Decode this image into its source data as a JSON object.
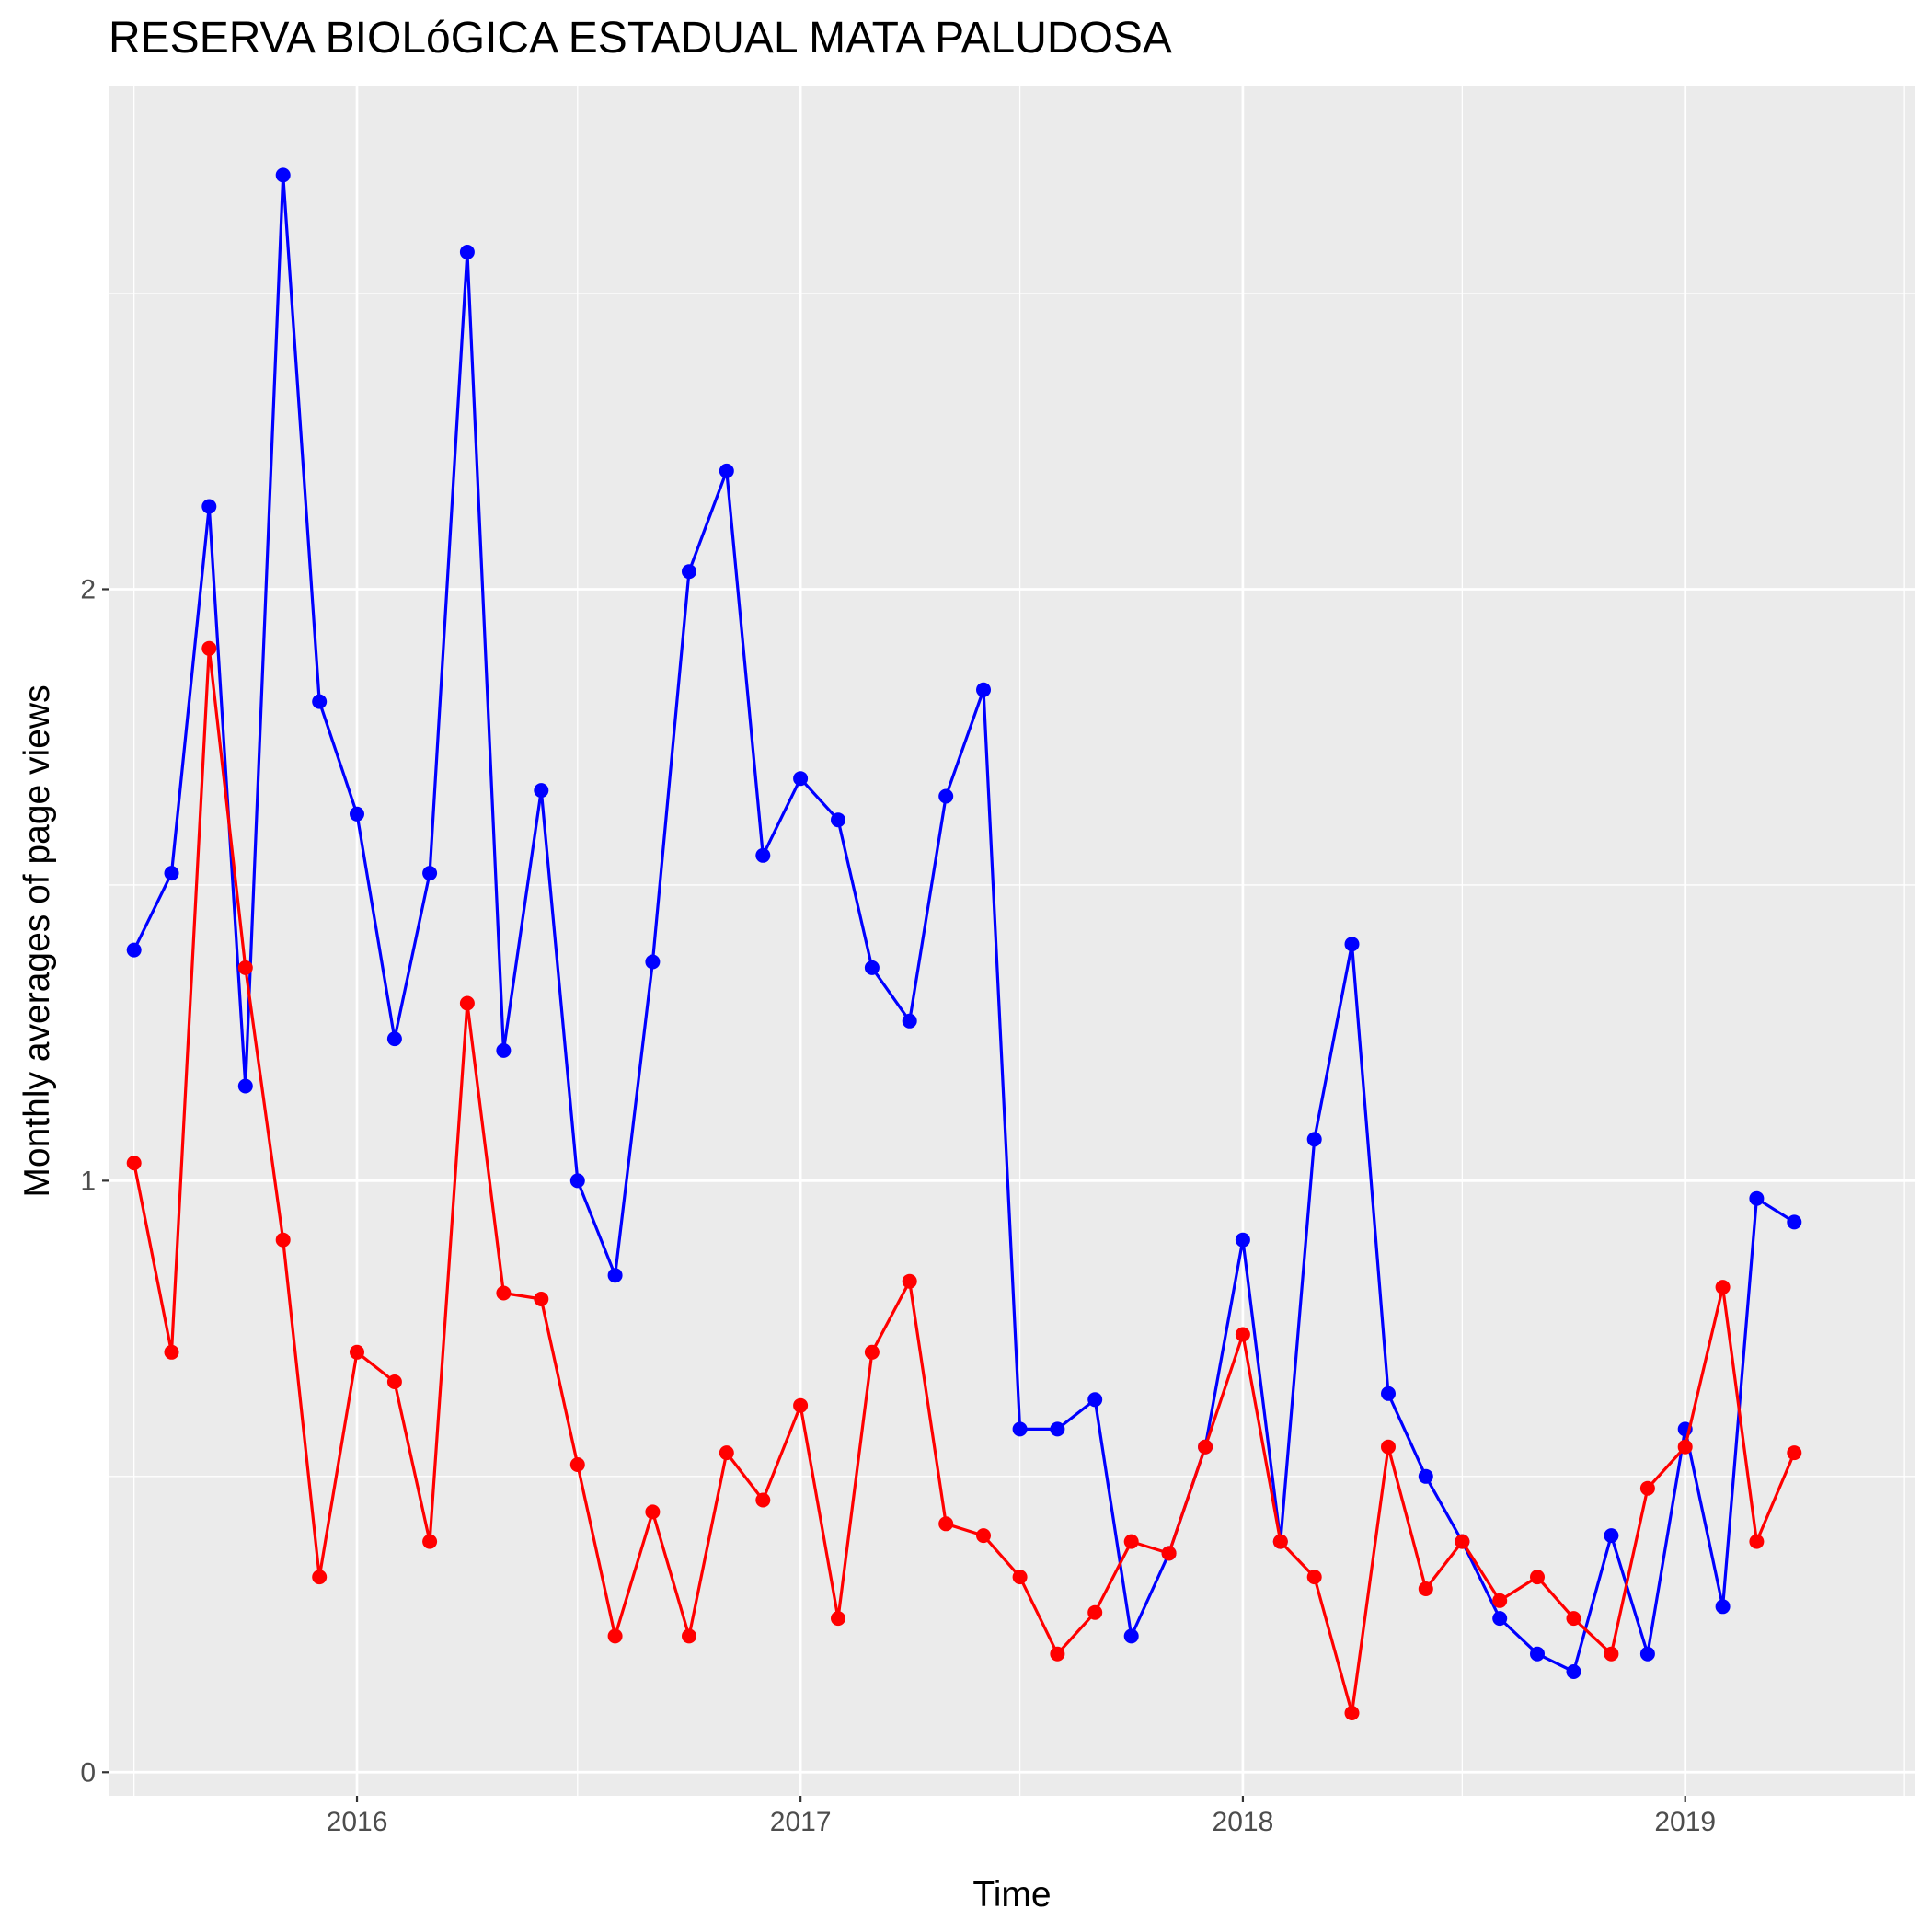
{
  "chart_data": {
    "type": "line",
    "title": "RESERVA BIOLóGICA ESTADUAL MATA PALUDOSA",
    "xlabel": "Time",
    "ylabel": "Monthly averages of page views",
    "x_ticks": [
      "2016",
      "2017",
      "2018",
      "2019"
    ],
    "y_ticks": [
      "0",
      "1",
      "2"
    ],
    "xlim": [
      "2015-06-10",
      "2019-07-10"
    ],
    "ylim": [
      -0.04,
      2.85
    ],
    "grid": true,
    "legend": "none",
    "background": "#ebebeb",
    "x": [
      "2015-07",
      "2015-08",
      "2015-09",
      "2015-10",
      "2015-11",
      "2015-12",
      "2016-01",
      "2016-02",
      "2016-03",
      "2016-04",
      "2016-05",
      "2016-06",
      "2016-07",
      "2016-08",
      "2016-09",
      "2016-10",
      "2016-11",
      "2016-12",
      "2017-01",
      "2017-02",
      "2017-03",
      "2017-04",
      "2017-05",
      "2017-06",
      "2017-07",
      "2017-08",
      "2017-09",
      "2017-10",
      "2017-11",
      "2017-12",
      "2018-01",
      "2018-02",
      "2018-03",
      "2018-04",
      "2018-05",
      "2018-06",
      "2018-07",
      "2018-08",
      "2018-09",
      "2018-10",
      "2018-11",
      "2018-12",
      "2019-01",
      "2019-02",
      "2019-03",
      "2019-04"
    ],
    "series": [
      {
        "color": "#0000ff",
        "values": [
          1.39,
          1.52,
          2.14,
          1.16,
          2.7,
          1.81,
          1.62,
          1.24,
          1.52,
          2.57,
          1.22,
          1.66,
          1.0,
          0.84,
          1.37,
          2.03,
          2.2,
          1.55,
          1.68,
          1.61,
          1.36,
          1.27,
          1.65,
          1.83,
          0.58,
          0.58,
          0.63,
          0.23,
          0.37,
          0.55,
          0.9,
          0.39,
          1.07,
          1.4,
          0.64,
          0.5,
          0.39,
          0.26,
          0.2,
          0.17,
          0.4,
          0.2,
          0.58,
          0.28,
          0.97,
          0.93
        ]
      },
      {
        "color": "#ff0000",
        "values": [
          1.03,
          0.71,
          1.9,
          1.36,
          0.9,
          0.33,
          0.71,
          0.66,
          0.39,
          1.3,
          0.81,
          0.8,
          0.52,
          0.23,
          0.44,
          0.23,
          0.54,
          0.46,
          0.62,
          0.26,
          0.71,
          0.83,
          0.42,
          0.4,
          0.33,
          0.2,
          0.27,
          0.39,
          0.37,
          0.55,
          0.74,
          0.39,
          0.33,
          0.1,
          0.55,
          0.31,
          0.39,
          0.29,
          0.33,
          0.26,
          0.2,
          0.48,
          0.55,
          0.82,
          0.39,
          0.54
        ]
      }
    ]
  }
}
